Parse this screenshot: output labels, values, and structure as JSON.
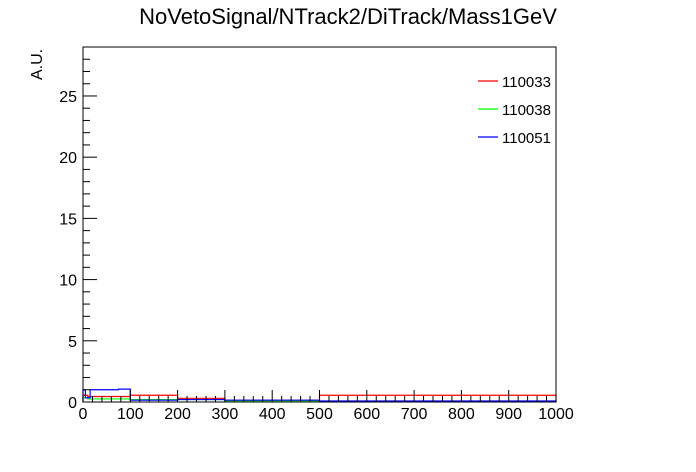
{
  "chart_data": {
    "type": "histogram",
    "title": "NoVetoSignal/NTrack2/DiTrack/Mass1GeV",
    "xlabel": "",
    "ylabel": "A.U.",
    "xlim": [
      0,
      1000
    ],
    "ylim": [
      0,
      29
    ],
    "x_ticks": [
      0,
      100,
      200,
      300,
      400,
      500,
      600,
      700,
      800,
      900,
      1000
    ],
    "y_ticks": [
      0,
      5,
      10,
      15,
      20,
      25
    ],
    "grid": false,
    "legend_position": "top-right",
    "series": [
      {
        "name": "110033",
        "color": "#ff0000",
        "bins": [
          {
            "x0": 0,
            "x1": 10,
            "y": 0.55
          },
          {
            "x0": 10,
            "x1": 50,
            "y": 0.45
          },
          {
            "x0": 50,
            "x1": 100,
            "y": 0.45
          },
          {
            "x0": 100,
            "x1": 200,
            "y": 0.55
          },
          {
            "x0": 200,
            "x1": 300,
            "y": 0.3
          },
          {
            "x0": 300,
            "x1": 500,
            "y": 0.15
          },
          {
            "x0": 500,
            "x1": 1000,
            "y": 0.55
          }
        ]
      },
      {
        "name": "110038",
        "color": "#00ff00",
        "bins": [
          {
            "x0": 0,
            "x1": 10,
            "y": 0.35
          },
          {
            "x0": 10,
            "x1": 50,
            "y": 0.25
          },
          {
            "x0": 50,
            "x1": 100,
            "y": 0.25
          },
          {
            "x0": 100,
            "x1": 200,
            "y": 0.2
          },
          {
            "x0": 200,
            "x1": 300,
            "y": 0.2
          },
          {
            "x0": 300,
            "x1": 500,
            "y": 0.1
          },
          {
            "x0": 500,
            "x1": 1000,
            "y": 0.05
          }
        ]
      },
      {
        "name": "110051",
        "color": "#0000ff",
        "bins": [
          {
            "x0": 0,
            "x1": 5,
            "y": 1.0
          },
          {
            "x0": 5,
            "x1": 15,
            "y": 0.35
          },
          {
            "x0": 15,
            "x1": 75,
            "y": 1.0
          },
          {
            "x0": 75,
            "x1": 100,
            "y": 1.05
          },
          {
            "x0": 100,
            "x1": 200,
            "y": 0.15
          },
          {
            "x0": 200,
            "x1": 300,
            "y": 0.2
          },
          {
            "x0": 300,
            "x1": 500,
            "y": 0.15
          },
          {
            "x0": 500,
            "x1": 1000,
            "y": 0.08
          }
        ]
      }
    ]
  }
}
